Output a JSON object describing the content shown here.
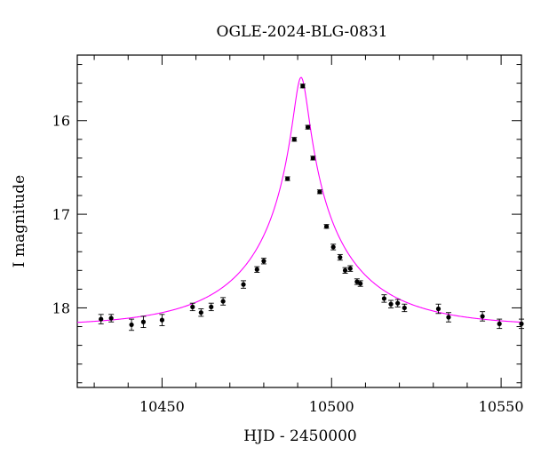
{
  "chart_data": {
    "type": "scatter",
    "title": "OGLE-2024-BLG-0831",
    "xlabel": "HJD - 2450000",
    "ylabel": "I magnitude",
    "xlim": [
      10425,
      10556
    ],
    "ylim": [
      18.85,
      15.3
    ],
    "y_inverted": true,
    "x_ticks": [
      10450,
      10500,
      10550
    ],
    "y_ticks": [
      16,
      17,
      18
    ],
    "grid": false,
    "legend": "none",
    "colors": {
      "points": "#000000",
      "model": "#ff00ff"
    },
    "model": {
      "type": "point-lens microlensing fit",
      "t0": 10491.0,
      "tE": 33,
      "u0": 0.062,
      "baseline": 18.2,
      "blend_fraction": 0.7
    },
    "points": [
      {
        "x": 10432.0,
        "y": 18.12,
        "err": 0.05
      },
      {
        "x": 10435.0,
        "y": 18.11,
        "err": 0.04
      },
      {
        "x": 10441.0,
        "y": 18.18,
        "err": 0.06
      },
      {
        "x": 10444.5,
        "y": 18.15,
        "err": 0.06
      },
      {
        "x": 10450.0,
        "y": 18.13,
        "err": 0.06
      },
      {
        "x": 10459.0,
        "y": 17.99,
        "err": 0.04
      },
      {
        "x": 10461.5,
        "y": 18.05,
        "err": 0.04
      },
      {
        "x": 10464.5,
        "y": 17.99,
        "err": 0.04
      },
      {
        "x": 10468.0,
        "y": 17.93,
        "err": 0.04
      },
      {
        "x": 10474.0,
        "y": 17.75,
        "err": 0.04
      },
      {
        "x": 10478.0,
        "y": 17.59,
        "err": 0.03
      },
      {
        "x": 10480.0,
        "y": 17.5,
        "err": 0.03
      },
      {
        "x": 10487.0,
        "y": 16.62,
        "err": 0.02
      },
      {
        "x": 10489.0,
        "y": 16.2,
        "err": 0.02
      },
      {
        "x": 10491.5,
        "y": 15.63,
        "err": 0.02
      },
      {
        "x": 10493.0,
        "y": 16.07,
        "err": 0.02
      },
      {
        "x": 10494.5,
        "y": 16.4,
        "err": 0.02
      },
      {
        "x": 10496.5,
        "y": 16.76,
        "err": 0.02
      },
      {
        "x": 10498.5,
        "y": 17.13,
        "err": 0.02
      },
      {
        "x": 10500.5,
        "y": 17.35,
        "err": 0.03
      },
      {
        "x": 10502.5,
        "y": 17.46,
        "err": 0.03
      },
      {
        "x": 10504.0,
        "y": 17.6,
        "err": 0.03
      },
      {
        "x": 10505.5,
        "y": 17.58,
        "err": 0.03
      },
      {
        "x": 10507.5,
        "y": 17.72,
        "err": 0.03
      },
      {
        "x": 10508.5,
        "y": 17.74,
        "err": 0.03
      },
      {
        "x": 10515.5,
        "y": 17.9,
        "err": 0.04
      },
      {
        "x": 10517.5,
        "y": 17.96,
        "err": 0.04
      },
      {
        "x": 10519.5,
        "y": 17.95,
        "err": 0.04
      },
      {
        "x": 10521.5,
        "y": 18.0,
        "err": 0.04
      },
      {
        "x": 10531.5,
        "y": 18.01,
        "err": 0.05
      },
      {
        "x": 10534.5,
        "y": 18.1,
        "err": 0.05
      },
      {
        "x": 10544.5,
        "y": 18.09,
        "err": 0.05
      },
      {
        "x": 10549.5,
        "y": 18.17,
        "err": 0.05
      },
      {
        "x": 10556.0,
        "y": 18.17,
        "err": 0.05
      }
    ]
  }
}
